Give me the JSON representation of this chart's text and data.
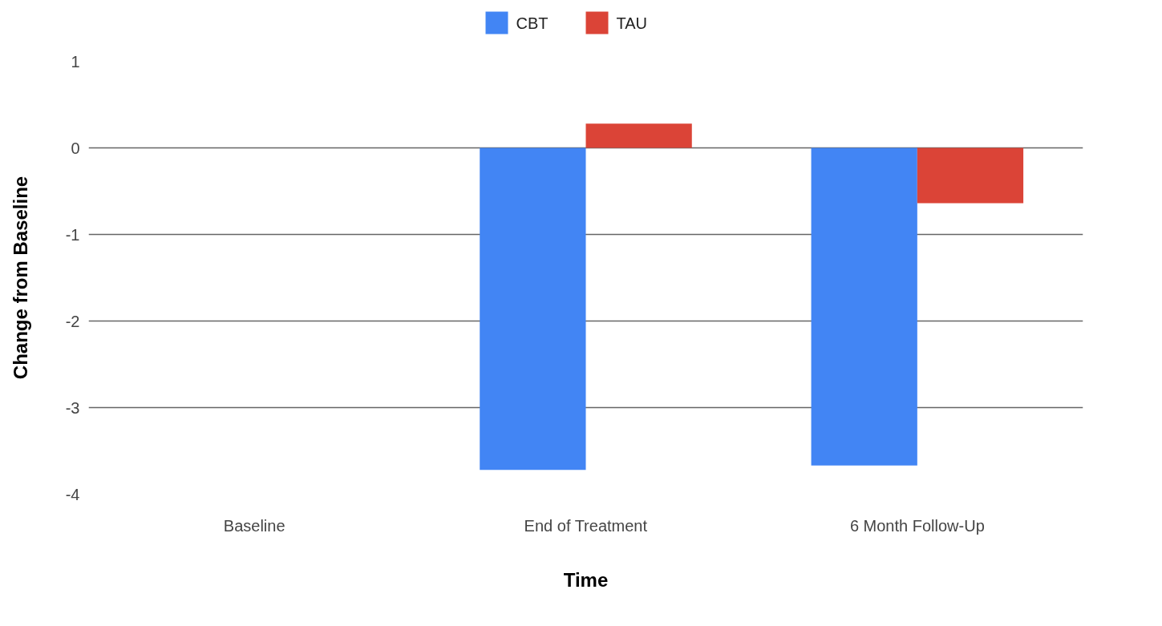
{
  "chart_data": {
    "type": "bar",
    "xlabel": "Time",
    "ylabel": "Change from Baseline",
    "categories": [
      "Baseline",
      "End of Treatment",
      "6 Month Follow-Up"
    ],
    "series": [
      {
        "name": "CBT",
        "color": "#4285f4",
        "values": [
          0,
          -3.72,
          -3.67
        ]
      },
      {
        "name": "TAU",
        "color": "#db4437",
        "values": [
          0,
          0.28,
          -0.64
        ]
      }
    ],
    "ylim": [
      -4,
      1
    ],
    "yticks": [
      -4,
      -3,
      -2,
      -1,
      0,
      1
    ],
    "grid": "y",
    "legend": "top"
  }
}
